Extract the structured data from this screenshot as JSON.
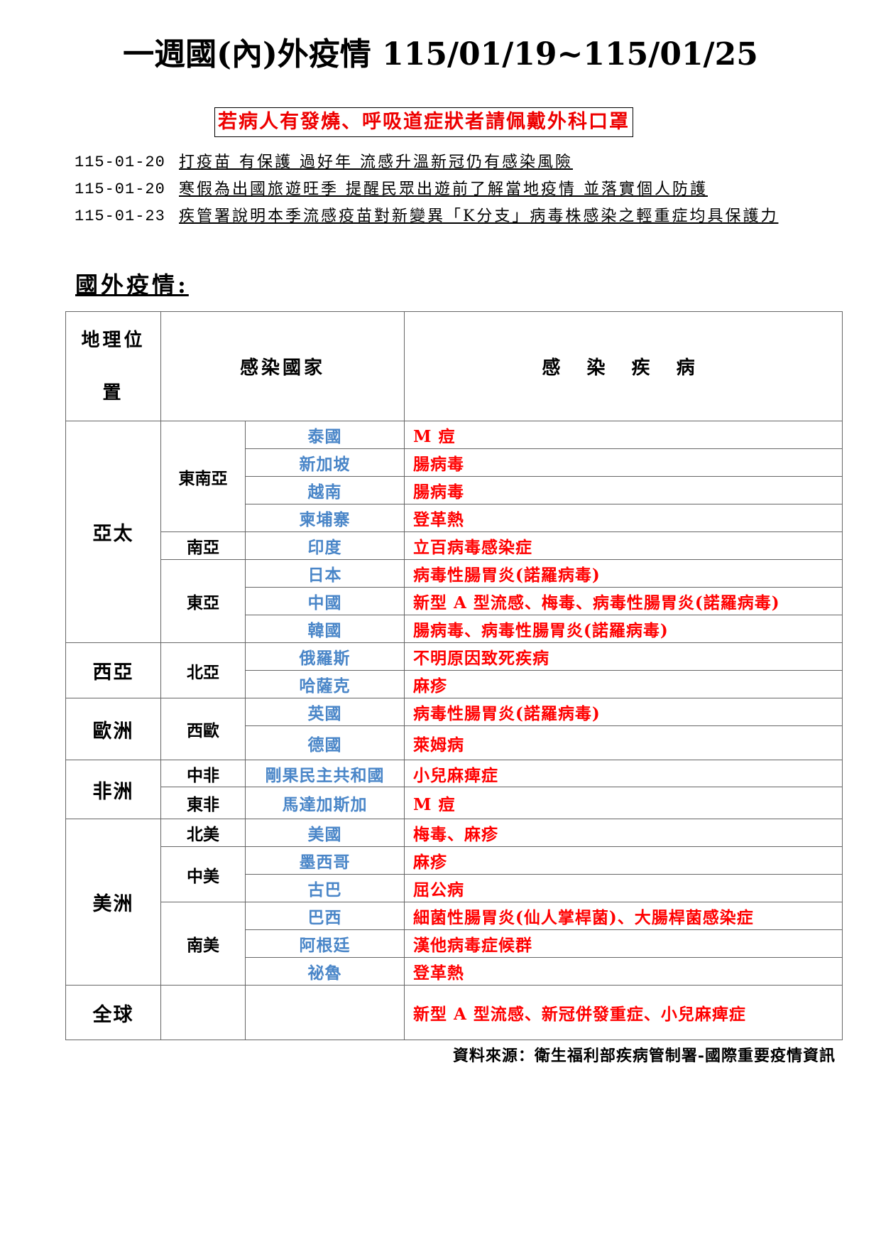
{
  "title": "一週國(內)外疫情 115/01/19~115/01/25",
  "warning": "若病人有發燒、呼吸道症狀者請佩戴外科口罩",
  "news": [
    {
      "date": "115-01-20",
      "text": "打疫苗 有保護 過好年 流感升溫新冠仍有感染風險"
    },
    {
      "date": "115-01-20",
      "text": "寒假為出國旅遊旺季 提醒民眾出遊前了解當地疫情 並落實個人防護"
    },
    {
      "date": "115-01-23",
      "text": "疾管署說明本季流感疫苗對新變異「K分支」病毒株感染之輕重症均具保護力"
    }
  ],
  "heading": "國外疫情:",
  "table": {
    "headers": [
      "地理位置",
      "感染國家",
      "感 染 疾 病"
    ],
    "regions": [
      {
        "name": "亞太",
        "subregions": [
          {
            "name": "東南亞",
            "countries": [
              {
                "name": "泰國",
                "disease": "M 痘"
              },
              {
                "name": "新加坡",
                "disease": "腸病毒"
              },
              {
                "name": "越南",
                "disease": "腸病毒"
              },
              {
                "name": "柬埔寨",
                "disease": "登革熱"
              }
            ]
          },
          {
            "name": "南亞",
            "countries": [
              {
                "name": "印度",
                "disease": "立百病毒感染症"
              }
            ]
          },
          {
            "name": "東亞",
            "countries": [
              {
                "name": "日本",
                "disease": "病毒性腸胃炎(諾羅病毒)"
              },
              {
                "name": "中國",
                "disease": "新型 A 型流感、梅毒、病毒性腸胃炎(諾羅病毒)"
              },
              {
                "name": "韓國",
                "disease": "腸病毒、病毒性腸胃炎(諾羅病毒)"
              }
            ]
          }
        ]
      },
      {
        "name": "西亞",
        "subregions": [
          {
            "name": "北亞",
            "countries": [
              {
                "name": "俄羅斯",
                "disease": "不明原因致死疾病"
              },
              {
                "name": "哈薩克",
                "disease": "麻疹"
              }
            ]
          }
        ]
      },
      {
        "name": "歐洲",
        "subregions": [
          {
            "name": "西歐",
            "countries": [
              {
                "name": "英國",
                "disease": "病毒性腸胃炎(諾羅病毒)"
              },
              {
                "name": "德國",
                "disease": "萊姆病"
              }
            ]
          }
        ]
      },
      {
        "name": "非洲",
        "subregions": [
          {
            "name": "中非",
            "countries": [
              {
                "name": "剛果民主共和國",
                "disease": "小兒麻痺症"
              }
            ]
          },
          {
            "name": "東非",
            "countries": [
              {
                "name": "馬達加斯加",
                "disease": "M 痘"
              }
            ]
          }
        ]
      },
      {
        "name": "美洲",
        "subregions": [
          {
            "name": "北美",
            "countries": [
              {
                "name": "美國",
                "disease": "梅毒、麻疹"
              }
            ]
          },
          {
            "name": "中美",
            "countries": [
              {
                "name": "墨西哥",
                "disease": "麻疹"
              },
              {
                "name": "古巴",
                "disease": "屈公病"
              }
            ]
          },
          {
            "name": "南美",
            "countries": [
              {
                "name": "巴西",
                "disease": "細菌性腸胃炎(仙人掌桿菌)、大腸桿菌感染症"
              },
              {
                "name": "阿根廷",
                "disease": "漢他病毒症候群"
              },
              {
                "name": "祕魯",
                "disease": "登革熱"
              }
            ]
          }
        ]
      },
      {
        "name": "全球",
        "subregions": [
          {
            "name": "",
            "countries": [
              {
                "name": "",
                "disease": "新型 A 型流感、新冠併發重症、小兒麻痺症"
              }
            ]
          }
        ]
      }
    ]
  },
  "source": "資料來源：衛生福利部疾病管制署-國際重要疫情資訊",
  "colors": {
    "country": "#4a86c8",
    "disease": "#ff0000"
  }
}
